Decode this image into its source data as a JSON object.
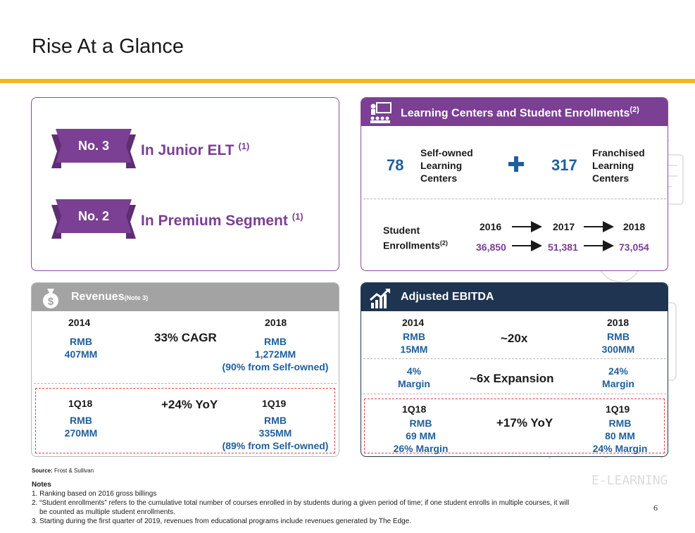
{
  "title": "Rise At a Glance",
  "rankings": [
    {
      "badge": "No. 3",
      "text": "In Junior ELT",
      "note": "(1)"
    },
    {
      "badge": "No. 2",
      "text": "In Premium Segment",
      "note": "(1)"
    }
  ],
  "learning_centers": {
    "header": "Learning Centers and Student Enrollments",
    "header_note": "(2)",
    "self_owned_count": "78",
    "self_owned_label": [
      "Self-owned",
      "Learning",
      "Centers"
    ],
    "franchised_count": "317",
    "franchised_label": [
      "Franchised",
      "Learning",
      "Centers"
    ],
    "enroll_label_1": "Student",
    "enroll_label_2": "Enrollments",
    "enroll_note": "(2)",
    "years": [
      "2016",
      "2017",
      "2018"
    ],
    "enrollments": [
      "36,850",
      "51,381",
      "73,054"
    ]
  },
  "revenues": {
    "header": "Revenues",
    "header_note": "(Note 3)",
    "y1": "2014",
    "y2": "2018",
    "v1": [
      "RMB",
      "407MM"
    ],
    "v2": [
      "RMB",
      "1,272MM",
      "(90% from Self-owned)"
    ],
    "cagr": "33% CAGR",
    "q1": "1Q18",
    "q2": "1Q19",
    "qv1": [
      "RMB",
      "270MM"
    ],
    "qv2": [
      "RMB",
      "335MM",
      "(89% from Self-owned)"
    ],
    "yoy": "+24% YoY"
  },
  "ebitda": {
    "header": "Adjusted EBITDA",
    "y1": "2014",
    "y2": "2018",
    "v1": [
      "RMB",
      "15MM"
    ],
    "v2": [
      "RMB",
      "300MM"
    ],
    "growth": "~20x",
    "m1": [
      "4%",
      "Margin"
    ],
    "m2": [
      "24%",
      "Margin"
    ],
    "expansion": "~6x Expansion",
    "q1": "1Q18",
    "q2": "1Q19",
    "qv1": [
      "RMB",
      "69 MM",
      "26% Margin"
    ],
    "qv2": [
      "RMB",
      "80 MM",
      "24% Margin"
    ],
    "yoy": "+17% YoY"
  },
  "source_label": "Source:",
  "source": "Frost & Sullivan",
  "notes_title": "Notes",
  "notes": [
    "1. Ranking based on 2016 gross billings",
    "2. “Student enrollments” refers to the cumulative total number of courses enrolled in by students during a given period of time; if one student enrolls in multiple courses, it will",
    "be counted as multiple student enrollments.",
    "3.  Starting during the first quarter of 2019, revenues from educational programs include revenues generated by The Edge."
  ],
  "watermark": "E-LEARNING",
  "page_number": "6",
  "colors": {
    "purple": "#7b3f93",
    "blue": "#1f5f9a",
    "navy": "#1e3450",
    "gold": "#f2b71f",
    "grey": "#a3a3a3",
    "red": "#e04040"
  }
}
